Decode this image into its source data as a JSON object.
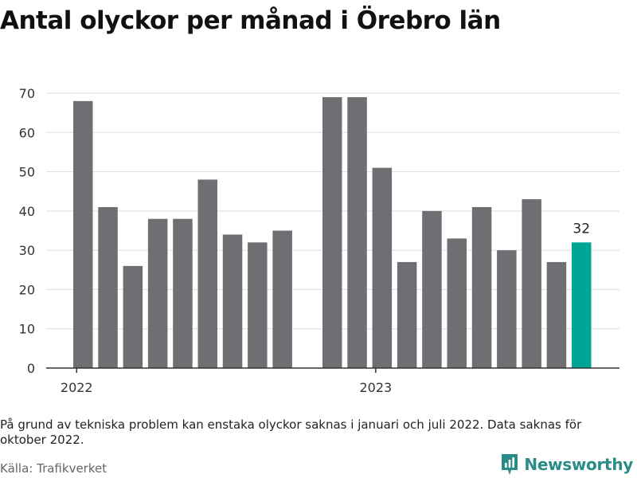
{
  "title": "Antal olyckor per månad i Örebro län",
  "note": "På grund av tekniska problem kan enstaka olyckor saknas i januari och juli 2022. Data saknas för oktober 2022.",
  "source": "Källa: Trafikverket",
  "brand": "Newsworthy",
  "colors": {
    "bar": "#706e73",
    "highlight": "#00a596",
    "grid": "#dddddd",
    "axis": "#333333",
    "brand": "#2a8c86"
  },
  "chart_data": {
    "type": "bar",
    "title": "Antal olyckor per månad i Örebro län",
    "xlabel": "",
    "ylabel": "",
    "ylim": [
      0,
      70
    ],
    "yticks": [
      0,
      10,
      20,
      30,
      40,
      50,
      60,
      70
    ],
    "grid": true,
    "x_tick_labels": [
      {
        "label": "2022",
        "at": "2022-01"
      },
      {
        "label": "2023",
        "at": "2023-01"
      }
    ],
    "points": [
      {
        "month": "2022-01",
        "value": 68
      },
      {
        "month": "2022-02",
        "value": 41
      },
      {
        "month": "2022-03",
        "value": 26
      },
      {
        "month": "2022-04",
        "value": 38
      },
      {
        "month": "2022-05",
        "value": 38
      },
      {
        "month": "2022-06",
        "value": 48
      },
      {
        "month": "2022-07",
        "value": 34
      },
      {
        "month": "2022-08",
        "value": 32
      },
      {
        "month": "2022-09",
        "value": 35
      },
      {
        "month": "2022-10",
        "value": null
      },
      {
        "month": "2022-11",
        "value": 69
      },
      {
        "month": "2022-12",
        "value": 69
      },
      {
        "month": "2023-01",
        "value": 51
      },
      {
        "month": "2023-02",
        "value": 27
      },
      {
        "month": "2023-03",
        "value": 40
      },
      {
        "month": "2023-04",
        "value": 33
      },
      {
        "month": "2023-05",
        "value": 41
      },
      {
        "month": "2023-06",
        "value": 30
      },
      {
        "month": "2023-07",
        "value": 43
      },
      {
        "month": "2023-08",
        "value": 27
      },
      {
        "month": "2023-09",
        "value": 32,
        "highlight": true,
        "label": "32"
      }
    ]
  }
}
